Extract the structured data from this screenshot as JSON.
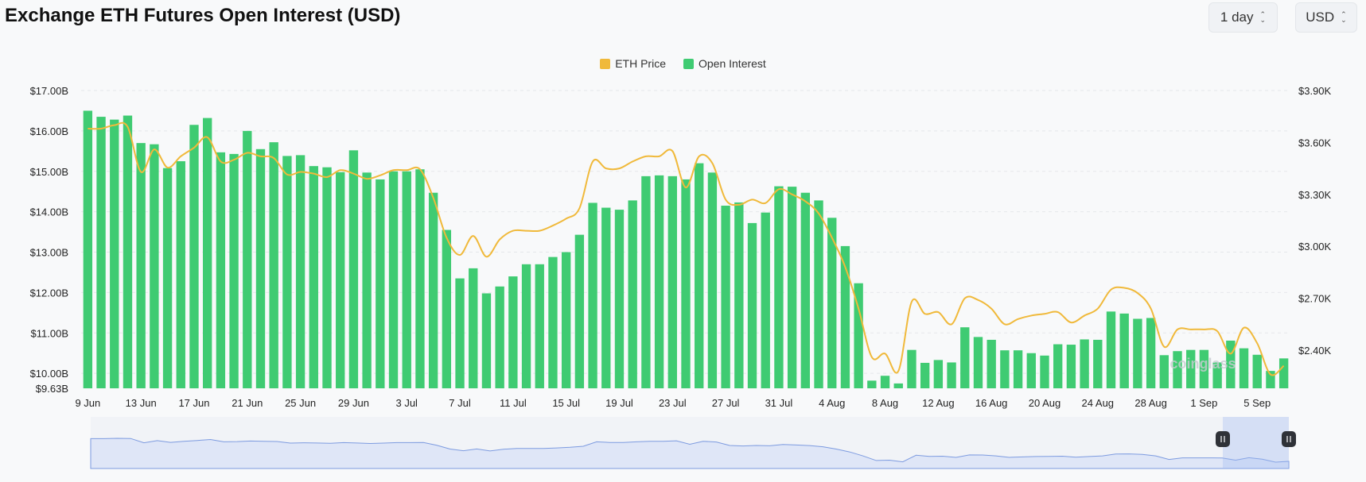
{
  "header": {
    "title": "Exchange ETH Futures Open Interest (USD)",
    "interval_label": "1 day",
    "currency_label": "USD"
  },
  "colors": {
    "price": "#f0b93a",
    "oi": "#3fcb72",
    "navigator_fill": "#dfe6f7",
    "navigator_line": "#7d9be0"
  },
  "chart_data": {
    "type": "bar",
    "series": [
      {
        "name": "Open Interest",
        "type": "bar",
        "axis": "left",
        "values": [
          16.5,
          16.35,
          16.28,
          16.38,
          15.7,
          15.67,
          15.08,
          15.25,
          16.15,
          16.32,
          15.47,
          15.43,
          16.0,
          15.55,
          15.72,
          15.38,
          15.4,
          15.13,
          15.1,
          14.98,
          15.52,
          14.97,
          14.8,
          15.0,
          15.0,
          15.05,
          14.47,
          13.55,
          12.35,
          12.6,
          11.98,
          12.15,
          12.4,
          12.7,
          12.7,
          12.88,
          13.0,
          13.43,
          14.22,
          14.1,
          14.05,
          14.28,
          14.88,
          14.9,
          14.88,
          14.8,
          15.2,
          14.97,
          14.15,
          14.23,
          13.72,
          13.98,
          14.63,
          14.62,
          14.47,
          14.28,
          13.85,
          13.15,
          12.23,
          9.82,
          9.94,
          9.75,
          10.58,
          10.26,
          10.33,
          10.27,
          11.14,
          10.9,
          10.83,
          10.57,
          10.57,
          10.5,
          10.44,
          10.72,
          10.71,
          10.84,
          10.83,
          11.53,
          11.48,
          11.35,
          11.37,
          10.45,
          10.55,
          10.58,
          10.58,
          10.27,
          10.81,
          10.62,
          10.46,
          10.06,
          10.37
        ]
      },
      {
        "name": "ETH Price",
        "type": "line",
        "axis": "right",
        "values": [
          3680,
          3680,
          3700,
          3690,
          3430,
          3560,
          3455,
          3520,
          3570,
          3630,
          3490,
          3500,
          3540,
          3520,
          3510,
          3415,
          3430,
          3420,
          3400,
          3440,
          3420,
          3390,
          3410,
          3440,
          3440,
          3445,
          3280,
          3050,
          2950,
          3060,
          2940,
          3040,
          3090,
          3090,
          3090,
          3120,
          3160,
          3220,
          3490,
          3450,
          3450,
          3490,
          3520,
          3520,
          3550,
          3340,
          3520,
          3480,
          3270,
          3240,
          3270,
          3250,
          3330,
          3300,
          3260,
          3190,
          3050,
          2880,
          2640,
          2360,
          2380,
          2280,
          2680,
          2610,
          2620,
          2550,
          2700,
          2690,
          2640,
          2550,
          2580,
          2600,
          2610,
          2620,
          2560,
          2600,
          2640,
          2750,
          2760,
          2730,
          2640,
          2420,
          2520,
          2520,
          2520,
          2510,
          2380,
          2530,
          2440,
          2260,
          2310
        ]
      }
    ],
    "x_tick_labels": [
      "9 Jun",
      "13 Jun",
      "17 Jun",
      "21 Jun",
      "25 Jun",
      "29 Jun",
      "3 Jul",
      "7 Jul",
      "11 Jul",
      "15 Jul",
      "19 Jul",
      "23 Jul",
      "27 Jul",
      "31 Jul",
      "4 Aug",
      "8 Aug",
      "12 Aug",
      "16 Aug",
      "20 Aug",
      "24 Aug",
      "28 Aug",
      "1 Sep",
      "5 Sep"
    ],
    "y_left_ticks": [
      "$17.00B",
      "$16.00B",
      "$15.00B",
      "$14.00B",
      "$13.00B",
      "$12.00B",
      "$11.00B",
      "$10.00B",
      "$9.63B"
    ],
    "y_right_ticks": [
      "$3.90K",
      "$3.60K",
      "$3.30K",
      "$3.00K",
      "$2.70K",
      "$2.40K"
    ],
    "y_left_range": [
      9.63,
      17.0
    ],
    "y_right_range": [
      2180,
      3900
    ],
    "legend": [
      "ETH Price",
      "Open Interest"
    ],
    "legend_position": "top-center",
    "grid": "horizontal dashed",
    "watermark": "coinglass"
  }
}
